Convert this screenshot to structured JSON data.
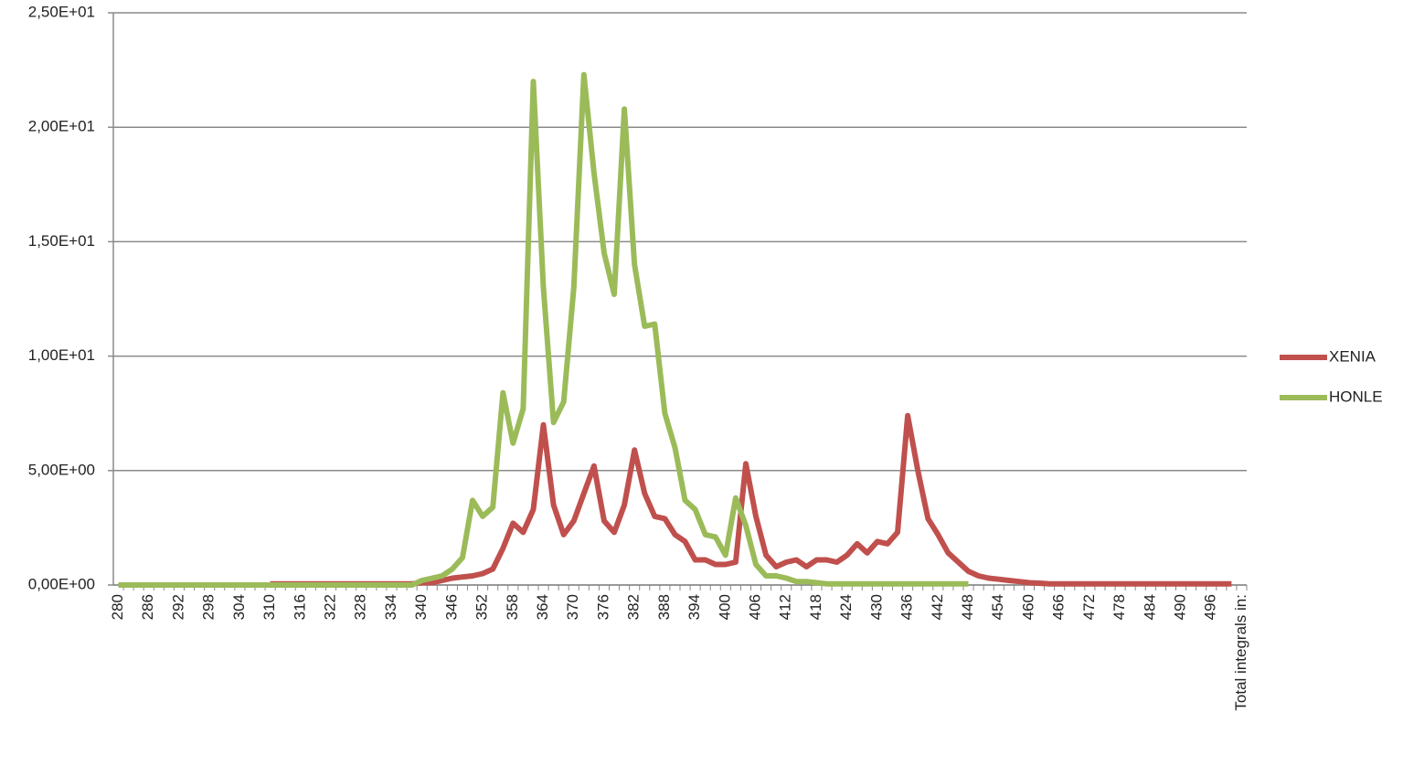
{
  "chart_data": {
    "type": "line",
    "categories": [
      280,
      null,
      null,
      286,
      null,
      null,
      292,
      null,
      null,
      298,
      null,
      null,
      304,
      null,
      null,
      310,
      null,
      null,
      316,
      null,
      null,
      322,
      null,
      null,
      328,
      null,
      null,
      334,
      null,
      null,
      340,
      null,
      null,
      346,
      null,
      null,
      352,
      null,
      null,
      358,
      null,
      null,
      364,
      null,
      null,
      370,
      null,
      null,
      376,
      null,
      null,
      382,
      null,
      null,
      388,
      null,
      null,
      394,
      null,
      null,
      400,
      null,
      null,
      406,
      null,
      null,
      412,
      null,
      null,
      418,
      null,
      null,
      424,
      null,
      null,
      430,
      null,
      null,
      436,
      null,
      null,
      442,
      null,
      null,
      448,
      null,
      null,
      454,
      null,
      null,
      460,
      null,
      null,
      466,
      null,
      null,
      472,
      null,
      null,
      478,
      null,
      null,
      484,
      null,
      null,
      490,
      null,
      null,
      496,
      null,
      null,
      "Total integrals in:"
    ],
    "series": [
      {
        "name": "XENIA",
        "color": "#c0504d",
        "values": [
          null,
          null,
          null,
          null,
          null,
          null,
          null,
          null,
          null,
          null,
          null,
          null,
          null,
          null,
          null,
          0.05,
          0.05,
          0.05,
          0.05,
          0.05,
          0.05,
          0.05,
          0.05,
          0.05,
          0.05,
          0.05,
          0.05,
          0.05,
          0.05,
          0.05,
          0.1,
          0.1,
          0.2,
          0.3,
          0.35,
          0.4,
          0.5,
          0.7,
          1.6,
          2.7,
          2.3,
          3.3,
          7.0,
          3.5,
          2.2,
          2.8,
          4.0,
          5.2,
          2.8,
          2.3,
          3.5,
          5.9,
          4.0,
          3.0,
          2.9,
          2.2,
          1.9,
          1.1,
          1.1,
          0.9,
          0.9,
          1.0,
          5.3,
          3.0,
          1.3,
          0.8,
          1.0,
          1.1,
          0.8,
          1.1,
          1.1,
          1.0,
          1.3,
          1.8,
          1.4,
          1.9,
          1.8,
          2.3,
          7.4,
          5.0,
          2.9,
          2.2,
          1.4,
          1.0,
          0.6,
          0.4,
          0.3,
          0.25,
          0.2,
          0.15,
          0.1,
          0.08,
          0.05,
          0.05,
          0.05,
          0.05,
          0.05,
          0.05,
          0.05,
          0.05,
          0.05,
          0.05,
          0.05,
          0.05,
          0.05,
          0.05,
          0.05,
          0.05,
          0.05,
          0.05,
          0.05,
          null
        ]
      },
      {
        "name": "HONLE",
        "color": "#9bbb59",
        "values": [
          0,
          0,
          0,
          0,
          0,
          0,
          0,
          0,
          0,
          0,
          0,
          0,
          0,
          0,
          0,
          0,
          0,
          0,
          0,
          0,
          0,
          0,
          0,
          0,
          0,
          0,
          0,
          0,
          0,
          0,
          0.2,
          0.3,
          0.4,
          0.7,
          1.2,
          3.7,
          3.0,
          3.4,
          8.4,
          6.2,
          7.7,
          22.0,
          13.0,
          7.1,
          8.0,
          13.0,
          22.3,
          18.0,
          14.5,
          12.7,
          20.8,
          14.0,
          11.3,
          11.4,
          7.5,
          6.0,
          3.7,
          3.3,
          2.2,
          2.1,
          1.3,
          3.8,
          2.6,
          0.9,
          0.4,
          0.4,
          0.3,
          0.15,
          0.15,
          0.1,
          0.05,
          0.05,
          0.05,
          0.05,
          0.05,
          0.05,
          0.05,
          0.05,
          0.05,
          0.05,
          0.05,
          0.05,
          0.05,
          0.05,
          0.05,
          null,
          null,
          null,
          null,
          null,
          null,
          null,
          null,
          null,
          null,
          null,
          null,
          null,
          null,
          null,
          null,
          null,
          null,
          null,
          null,
          null,
          null,
          null,
          null,
          null,
          null,
          null
        ]
      }
    ],
    "ylim": [
      0,
      25
    ],
    "yticks": [
      {
        "value": 0,
        "label": "0,00E+00"
      },
      {
        "value": 5,
        "label": "5,00E+00"
      },
      {
        "value": 10,
        "label": "1,00E+01"
      },
      {
        "value": 15,
        "label": "1,50E+01"
      },
      {
        "value": 20,
        "label": "2,00E+01"
      },
      {
        "value": 25,
        "label": "2,50E+01"
      }
    ],
    "grid": true,
    "legend": "right"
  }
}
